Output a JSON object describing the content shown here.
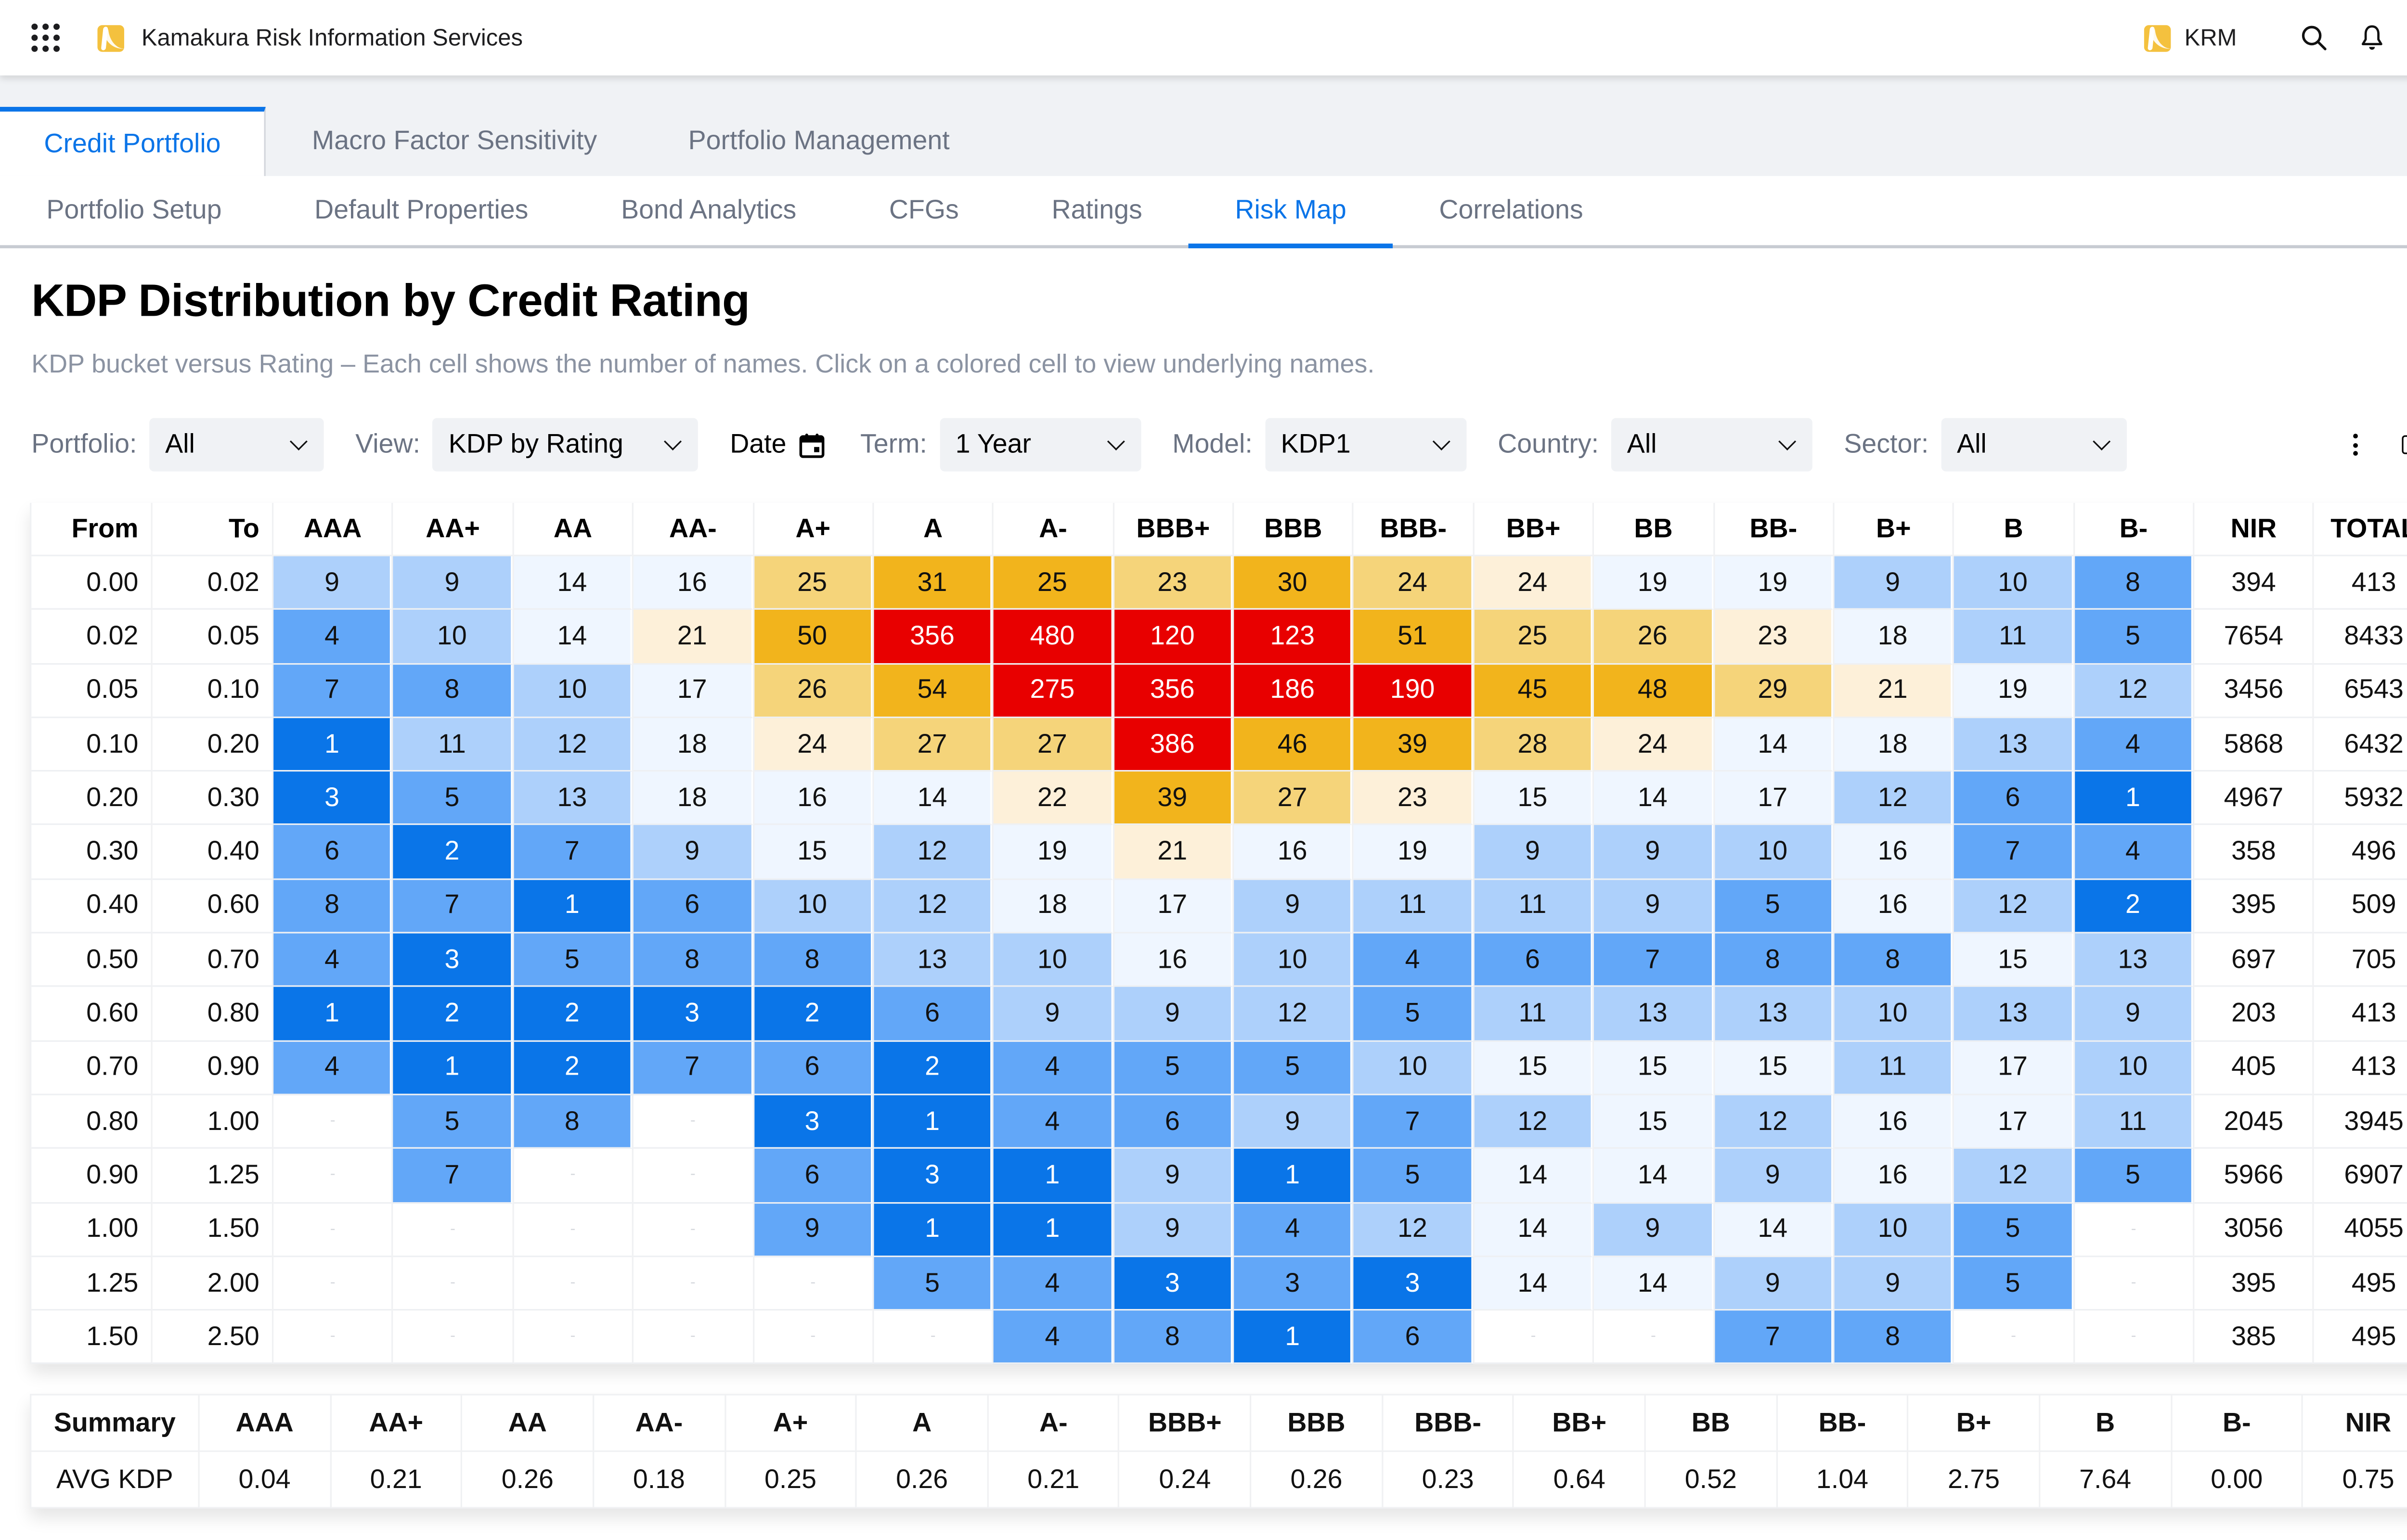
{
  "topbar": {
    "app_title": "Kamakura Risk Information Services",
    "brand_short": "KRM",
    "brand_color": "#f4c13e",
    "icons": [
      "apps-grid-icon",
      "search-icon",
      "bell-icon",
      "user-icon"
    ]
  },
  "tabs_primary": [
    {
      "label": "Credit Portfolio",
      "active": true
    },
    {
      "label": "Macro Factor Sensitivity",
      "active": false
    },
    {
      "label": "Portfolio Management",
      "active": false
    }
  ],
  "tabs_secondary": [
    {
      "label": "Portfolio Setup",
      "active": false
    },
    {
      "label": "Default Properties",
      "active": false
    },
    {
      "label": "Bond Analytics",
      "active": false
    },
    {
      "label": "CFGs",
      "active": false
    },
    {
      "label": "Ratings",
      "active": false
    },
    {
      "label": "Risk Map",
      "active": true
    },
    {
      "label": "Correlations",
      "active": false
    }
  ],
  "page": {
    "title": "KDP Distribution by Credit Rating",
    "subtitle": "KDP bucket versus Rating – Each cell shows the number of names. Click on a colored cell to view underlying names."
  },
  "filters": {
    "portfolio": {
      "label": "Portfolio:",
      "value": "All"
    },
    "view": {
      "label": "View:",
      "value": "KDP by Rating"
    },
    "date": {
      "label": "Date"
    },
    "term": {
      "label": "Term:",
      "value": "1 Year"
    },
    "model": {
      "label": "Model:",
      "value": "KDP1"
    },
    "country": {
      "label": "Country:",
      "value": "All"
    },
    "sector": {
      "label": "Sector:",
      "value": "All"
    }
  },
  "accent_color": "#0a74e8",
  "heat_colors": {
    "r": "#e80000",
    "g": "#f2b41c",
    "t": "#f5d47a",
    "c": "#fdf0d9",
    "b1": "#eff6ff",
    "b2": "#add0fb",
    "b3": "#62a7f8",
    "b4": "#0a75e8"
  },
  "grid": {
    "empty_marker": "-",
    "headers": {
      "from": "From",
      "to": "To",
      "ratings": [
        "AAA",
        "AA+",
        "AA",
        "AA-",
        "A+",
        "A",
        "A-",
        "BBB+",
        "BBB",
        "BBB-",
        "BB+",
        "BB",
        "BB-",
        "B+",
        "B",
        "B-"
      ],
      "nir": "NIR",
      "total": "TOTAL"
    },
    "rows": [
      {
        "from": "0.00",
        "to": "0.02",
        "cells": [
          [
            9,
            "b2"
          ],
          [
            9,
            "b2"
          ],
          [
            14,
            "b1"
          ],
          [
            16,
            "b1"
          ],
          [
            25,
            "t"
          ],
          [
            31,
            "g"
          ],
          [
            25,
            "g"
          ],
          [
            23,
            "t"
          ],
          [
            30,
            "g"
          ],
          [
            24,
            "t"
          ],
          [
            24,
            "c"
          ],
          [
            19,
            "b1"
          ],
          [
            19,
            "b1"
          ],
          [
            9,
            "b2"
          ],
          [
            10,
            "b2"
          ],
          [
            8,
            "b3"
          ]
        ],
        "nir": 394,
        "total": 413
      },
      {
        "from": "0.02",
        "to": "0.05",
        "cells": [
          [
            4,
            "b3"
          ],
          [
            10,
            "b2"
          ],
          [
            14,
            "b1"
          ],
          [
            21,
            "c"
          ],
          [
            50,
            "g"
          ],
          [
            356,
            "r"
          ],
          [
            480,
            "r"
          ],
          [
            120,
            "r"
          ],
          [
            123,
            "r"
          ],
          [
            51,
            "g"
          ],
          [
            25,
            "t"
          ],
          [
            26,
            "t"
          ],
          [
            23,
            "c"
          ],
          [
            18,
            "b1"
          ],
          [
            11,
            "b2"
          ],
          [
            5,
            "b3"
          ]
        ],
        "nir": 7654,
        "total": 8433
      },
      {
        "from": "0.05",
        "to": "0.10",
        "cells": [
          [
            7,
            "b3"
          ],
          [
            8,
            "b3"
          ],
          [
            10,
            "b2"
          ],
          [
            17,
            "b1"
          ],
          [
            26,
            "t"
          ],
          [
            54,
            "g"
          ],
          [
            275,
            "r"
          ],
          [
            356,
            "r"
          ],
          [
            186,
            "r"
          ],
          [
            190,
            "r"
          ],
          [
            45,
            "g"
          ],
          [
            48,
            "g"
          ],
          [
            29,
            "t"
          ],
          [
            21,
            "c"
          ],
          [
            19,
            "b1"
          ],
          [
            12,
            "b2"
          ]
        ],
        "nir": 3456,
        "total": 6543
      },
      {
        "from": "0.10",
        "to": "0.20",
        "cells": [
          [
            1,
            "b4"
          ],
          [
            11,
            "b2"
          ],
          [
            12,
            "b2"
          ],
          [
            18,
            "b1"
          ],
          [
            24,
            "c"
          ],
          [
            27,
            "t"
          ],
          [
            27,
            "t"
          ],
          [
            386,
            "r"
          ],
          [
            46,
            "g"
          ],
          [
            39,
            "g"
          ],
          [
            28,
            "t"
          ],
          [
            24,
            "c"
          ],
          [
            14,
            "b1"
          ],
          [
            18,
            "b1"
          ],
          [
            13,
            "b2"
          ],
          [
            4,
            "b3"
          ]
        ],
        "nir": 5868,
        "total": 6432
      },
      {
        "from": "0.20",
        "to": "0.30",
        "cells": [
          [
            3,
            "b4"
          ],
          [
            5,
            "b3"
          ],
          [
            13,
            "b2"
          ],
          [
            18,
            "b1"
          ],
          [
            16,
            "b1"
          ],
          [
            14,
            "b1"
          ],
          [
            22,
            "c"
          ],
          [
            39,
            "g"
          ],
          [
            27,
            "t"
          ],
          [
            23,
            "c"
          ],
          [
            15,
            "b1"
          ],
          [
            14,
            "b1"
          ],
          [
            17,
            "b1"
          ],
          [
            12,
            "b2"
          ],
          [
            6,
            "b3"
          ],
          [
            1,
            "b4"
          ]
        ],
        "nir": 4967,
        "total": 5932
      },
      {
        "from": "0.30",
        "to": "0.40",
        "cells": [
          [
            6,
            "b3"
          ],
          [
            2,
            "b4"
          ],
          [
            7,
            "b3"
          ],
          [
            9,
            "b2"
          ],
          [
            15,
            "b1"
          ],
          [
            12,
            "b2"
          ],
          [
            19,
            "b1"
          ],
          [
            21,
            "c"
          ],
          [
            16,
            "b1"
          ],
          [
            19,
            "b1"
          ],
          [
            9,
            "b2"
          ],
          [
            9,
            "b2"
          ],
          [
            10,
            "b2"
          ],
          [
            16,
            "b1"
          ],
          [
            7,
            "b3"
          ],
          [
            4,
            "b3"
          ]
        ],
        "nir": 358,
        "total": 496
      },
      {
        "from": "0.40",
        "to": "0.60",
        "cells": [
          [
            8,
            "b3"
          ],
          [
            7,
            "b3"
          ],
          [
            1,
            "b4"
          ],
          [
            6,
            "b3"
          ],
          [
            10,
            "b2"
          ],
          [
            12,
            "b2"
          ],
          [
            18,
            "b1"
          ],
          [
            17,
            "b1"
          ],
          [
            9,
            "b2"
          ],
          [
            11,
            "b2"
          ],
          [
            11,
            "b2"
          ],
          [
            9,
            "b2"
          ],
          [
            5,
            "b3"
          ],
          [
            16,
            "b1"
          ],
          [
            12,
            "b2"
          ],
          [
            2,
            "b4"
          ]
        ],
        "nir": 395,
        "total": 509
      },
      {
        "from": "0.50",
        "to": "0.70",
        "cells": [
          [
            4,
            "b3"
          ],
          [
            3,
            "b4"
          ],
          [
            5,
            "b3"
          ],
          [
            8,
            "b3"
          ],
          [
            8,
            "b3"
          ],
          [
            13,
            "b2"
          ],
          [
            10,
            "b2"
          ],
          [
            16,
            "b1"
          ],
          [
            10,
            "b2"
          ],
          [
            4,
            "b3"
          ],
          [
            6,
            "b3"
          ],
          [
            7,
            "b3"
          ],
          [
            8,
            "b3"
          ],
          [
            8,
            "b3"
          ],
          [
            15,
            "b1"
          ],
          [
            13,
            "b2"
          ]
        ],
        "nir": 697,
        "total": 705
      },
      {
        "from": "0.60",
        "to": "0.80",
        "cells": [
          [
            1,
            "b4"
          ],
          [
            2,
            "b4"
          ],
          [
            2,
            "b4"
          ],
          [
            3,
            "b4"
          ],
          [
            2,
            "b4"
          ],
          [
            6,
            "b3"
          ],
          [
            9,
            "b2"
          ],
          [
            9,
            "b2"
          ],
          [
            12,
            "b2"
          ],
          [
            5,
            "b3"
          ],
          [
            11,
            "b2"
          ],
          [
            13,
            "b2"
          ],
          [
            13,
            "b2"
          ],
          [
            10,
            "b2"
          ],
          [
            13,
            "b2"
          ],
          [
            9,
            "b2"
          ]
        ],
        "nir": 203,
        "total": 413
      },
      {
        "from": "0.70",
        "to": "0.90",
        "cells": [
          [
            4,
            "b3"
          ],
          [
            1,
            "b4"
          ],
          [
            2,
            "b4"
          ],
          [
            7,
            "b3"
          ],
          [
            6,
            "b3"
          ],
          [
            2,
            "b4"
          ],
          [
            4,
            "b3"
          ],
          [
            5,
            "b3"
          ],
          [
            5,
            "b3"
          ],
          [
            10,
            "b2"
          ],
          [
            15,
            "b1"
          ],
          [
            15,
            "b1"
          ],
          [
            15,
            "b1"
          ],
          [
            11,
            "b2"
          ],
          [
            17,
            "b1"
          ],
          [
            10,
            "b2"
          ]
        ],
        "nir": 405,
        "total": 413
      },
      {
        "from": "0.80",
        "to": "1.00",
        "cells": [
          [
            null,
            ""
          ],
          [
            5,
            "b3"
          ],
          [
            8,
            "b3"
          ],
          [
            null,
            ""
          ],
          [
            3,
            "b4"
          ],
          [
            1,
            "b4"
          ],
          [
            4,
            "b3"
          ],
          [
            6,
            "b3"
          ],
          [
            9,
            "b2"
          ],
          [
            7,
            "b3"
          ],
          [
            12,
            "b2"
          ],
          [
            15,
            "b1"
          ],
          [
            12,
            "b2"
          ],
          [
            16,
            "b1"
          ],
          [
            17,
            "b1"
          ],
          [
            11,
            "b2"
          ]
        ],
        "nir": 2045,
        "total": 3945
      },
      {
        "from": "0.90",
        "to": "1.25",
        "cells": [
          [
            null,
            ""
          ],
          [
            7,
            "b3"
          ],
          [
            null,
            ""
          ],
          [
            null,
            ""
          ],
          [
            6,
            "b3"
          ],
          [
            3,
            "b4"
          ],
          [
            1,
            "b4"
          ],
          [
            9,
            "b2"
          ],
          [
            1,
            "b4"
          ],
          [
            5,
            "b3"
          ],
          [
            14,
            "b1"
          ],
          [
            14,
            "b1"
          ],
          [
            9,
            "b2"
          ],
          [
            16,
            "b1"
          ],
          [
            12,
            "b2"
          ],
          [
            5,
            "b3"
          ]
        ],
        "nir": 5966,
        "total": 6907
      },
      {
        "from": "1.00",
        "to": "1.50",
        "cells": [
          [
            null,
            ""
          ],
          [
            null,
            ""
          ],
          [
            null,
            ""
          ],
          [
            null,
            ""
          ],
          [
            9,
            "b3"
          ],
          [
            1,
            "b4"
          ],
          [
            1,
            "b4"
          ],
          [
            9,
            "b2"
          ],
          [
            4,
            "b3"
          ],
          [
            12,
            "b2"
          ],
          [
            14,
            "b1"
          ],
          [
            9,
            "b2"
          ],
          [
            14,
            "b1"
          ],
          [
            10,
            "b2"
          ],
          [
            5,
            "b3"
          ],
          [
            null,
            ""
          ]
        ],
        "nir": 3056,
        "total": 4055
      },
      {
        "from": "1.25",
        "to": "2.00",
        "cells": [
          [
            null,
            ""
          ],
          [
            null,
            ""
          ],
          [
            null,
            ""
          ],
          [
            null,
            ""
          ],
          [
            null,
            ""
          ],
          [
            5,
            "b3"
          ],
          [
            4,
            "b3"
          ],
          [
            3,
            "b4"
          ],
          [
            3,
            "b3"
          ],
          [
            3,
            "b4"
          ],
          [
            14,
            "b1"
          ],
          [
            14,
            "b1"
          ],
          [
            9,
            "b2"
          ],
          [
            9,
            "b2"
          ],
          [
            5,
            "b3"
          ],
          [
            null,
            ""
          ]
        ],
        "nir": 395,
        "total": 495
      },
      {
        "from": "1.50",
        "to": "2.50",
        "cells": [
          [
            null,
            ""
          ],
          [
            null,
            ""
          ],
          [
            null,
            ""
          ],
          [
            null,
            ""
          ],
          [
            null,
            ""
          ],
          [
            null,
            ""
          ],
          [
            4,
            "b3"
          ],
          [
            8,
            "b3"
          ],
          [
            1,
            "b4"
          ],
          [
            6,
            "b3"
          ],
          [
            null,
            ""
          ],
          [
            null,
            ""
          ],
          [
            7,
            "b3"
          ],
          [
            8,
            "b3"
          ],
          [
            null,
            ""
          ],
          [
            null,
            ""
          ]
        ],
        "nir": 385,
        "total": 495
      }
    ]
  },
  "summary": {
    "header_label": "Summary",
    "columns": [
      "AAA",
      "AA+",
      "AA",
      "AA-",
      "A+",
      "A",
      "A-",
      "BBB+",
      "BBB",
      "BBB-",
      "BB+",
      "BB",
      "BB-",
      "B+",
      "B",
      "B-",
      "NIR"
    ],
    "row_label": "AVG KDP",
    "values": [
      "0.04",
      "0.21",
      "0.26",
      "0.18",
      "0.25",
      "0.26",
      "0.21",
      "0.24",
      "0.26",
      "0.23",
      "0.64",
      "0.52",
      "1.04",
      "2.75",
      "7.64",
      "0.00",
      "0.75"
    ]
  }
}
